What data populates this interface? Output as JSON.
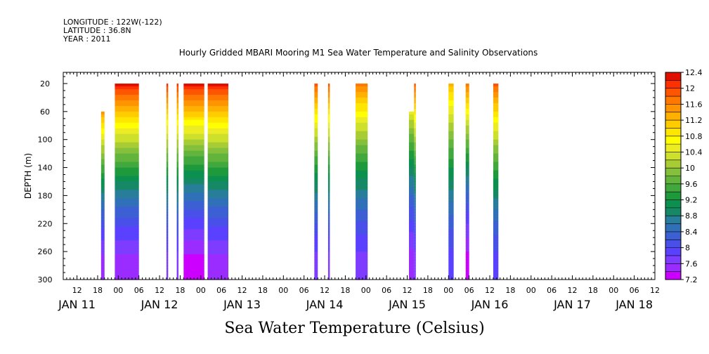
{
  "header": {
    "longitude": "LONGITUDE : 122W(-122)",
    "latitude": "LATITUDE : 36.8N",
    "year": "YEAR : 2011"
  },
  "caption": "Sea Water Temperature (Celsius)",
  "chart_data": {
    "type": "heatmap",
    "title": "Hourly Gridded MBARI Mooring M1 Sea Water Temperature and Salinity Observations",
    "ylabel": "DEPTH (m)",
    "xlabel": "",
    "x_unit": "hours since JAN 11 00:00",
    "xlim": [
      8,
      180
    ],
    "ylim": [
      300,
      4
    ],
    "y_reversed": true,
    "y_ticks": [
      20,
      60,
      100,
      140,
      180,
      220,
      260,
      300
    ],
    "x_hour_ticks": [
      {
        "h": 12,
        "label": "12"
      },
      {
        "h": 18,
        "label": "18"
      },
      {
        "h": 24,
        "label": "00"
      },
      {
        "h": 30,
        "label": "06"
      },
      {
        "h": 36,
        "label": "12"
      },
      {
        "h": 42,
        "label": "18"
      },
      {
        "h": 48,
        "label": "00"
      },
      {
        "h": 54,
        "label": "06"
      },
      {
        "h": 60,
        "label": "12"
      },
      {
        "h": 66,
        "label": "18"
      },
      {
        "h": 72,
        "label": "00"
      },
      {
        "h": 78,
        "label": "06"
      },
      {
        "h": 84,
        "label": "12"
      },
      {
        "h": 90,
        "label": "18"
      },
      {
        "h": 96,
        "label": "00"
      },
      {
        "h": 102,
        "label": "06"
      },
      {
        "h": 108,
        "label": "12"
      },
      {
        "h": 114,
        "label": "18"
      },
      {
        "h": 120,
        "label": "00"
      },
      {
        "h": 126,
        "label": "06"
      },
      {
        "h": 132,
        "label": "12"
      },
      {
        "h": 138,
        "label": "18"
      },
      {
        "h": 144,
        "label": "00"
      },
      {
        "h": 150,
        "label": "06"
      },
      {
        "h": 156,
        "label": "12"
      },
      {
        "h": 162,
        "label": "18"
      },
      {
        "h": 168,
        "label": "00"
      },
      {
        "h": 174,
        "label": "06"
      },
      {
        "h": 180,
        "label": "12"
      }
    ],
    "day_labels": [
      {
        "h": 12,
        "label": "JAN 11"
      },
      {
        "h": 36,
        "label": "JAN 12"
      },
      {
        "h": 60,
        "label": "JAN 13"
      },
      {
        "h": 84,
        "label": "JAN 14"
      },
      {
        "h": 108,
        "label": "JAN 15"
      },
      {
        "h": 132,
        "label": "JAN 16"
      },
      {
        "h": 156,
        "label": "JAN 17"
      },
      {
        "h": 174,
        "label": "JAN 18"
      }
    ],
    "colorbar": {
      "levels": [
        7.2,
        7.4,
        7.6,
        7.8,
        8.0,
        8.2,
        8.4,
        8.6,
        8.8,
        9.0,
        9.2,
        9.4,
        9.6,
        9.8,
        10.0,
        10.2,
        10.4,
        10.6,
        10.8,
        11.0,
        11.2,
        11.4,
        11.6,
        11.8,
        12.0,
        12.2,
        12.4
      ],
      "labels": [
        "7.2",
        "7.6",
        "8",
        "8.4",
        "8.8",
        "9.2",
        "9.6",
        "10",
        "10.4",
        "10.8",
        "11.2",
        "11.6",
        "12",
        "12.4"
      ],
      "colors": [
        "#cc00ff",
        "#9b2cff",
        "#7d3cff",
        "#5a40ff",
        "#4850e8",
        "#3c60d4",
        "#3070b8",
        "#287e9a",
        "#168866",
        "#0c9050",
        "#1e9a3c",
        "#40a83c",
        "#62b43c",
        "#84c03c",
        "#a8cc34",
        "#cce02c",
        "#ecec24",
        "#ffff00",
        "#ffe600",
        "#ffcc00",
        "#ffb000",
        "#ff9400",
        "#ff7800",
        "#ff5500",
        "#ff3000",
        "#e01000",
        "#a01000"
      ]
    },
    "segments": [
      {
        "start": 19,
        "end": 20,
        "top_depth": 60,
        "surface_temp": 11.4,
        "bottom_temp": 7.4
      },
      {
        "start": 23,
        "end": 30,
        "top_depth": 20,
        "surface_temp": 12.2,
        "bottom_temp": 7.4
      },
      {
        "start": 38,
        "end": 38.5,
        "top_depth": 20,
        "surface_temp": 12.0,
        "bottom_temp": 7.6
      },
      {
        "start": 41,
        "end": 41.5,
        "top_depth": 20,
        "surface_temp": 12.0,
        "bottom_temp": 7.6
      },
      {
        "start": 43,
        "end": 49,
        "top_depth": 20,
        "surface_temp": 12.2,
        "bottom_temp": 7.2
      },
      {
        "start": 50,
        "end": 56,
        "top_depth": 20,
        "surface_temp": 12.2,
        "bottom_temp": 7.4
      },
      {
        "start": 81,
        "end": 82,
        "top_depth": 20,
        "surface_temp": 11.8,
        "bottom_temp": 7.6
      },
      {
        "start": 85,
        "end": 85.5,
        "top_depth": 20,
        "surface_temp": 11.8,
        "bottom_temp": 7.6
      },
      {
        "start": 93,
        "end": 96.5,
        "top_depth": 20,
        "surface_temp": 11.6,
        "bottom_temp": 7.6
      },
      {
        "start": 108.5,
        "end": 110,
        "top_depth": 60,
        "surface_temp": 10.4,
        "bottom_temp": 7.4
      },
      {
        "start": 110,
        "end": 110.5,
        "top_depth": 20,
        "surface_temp": 11.8,
        "bottom_temp": 7.6
      },
      {
        "start": 120,
        "end": 121.5,
        "top_depth": 20,
        "surface_temp": 11.2,
        "bottom_temp": 7.8
      },
      {
        "start": 125,
        "end": 126,
        "top_depth": 20,
        "surface_temp": 11.6,
        "bottom_temp": 7.2
      },
      {
        "start": 133,
        "end": 134.5,
        "top_depth": 20,
        "surface_temp": 11.8,
        "bottom_temp": 7.8
      }
    ]
  }
}
